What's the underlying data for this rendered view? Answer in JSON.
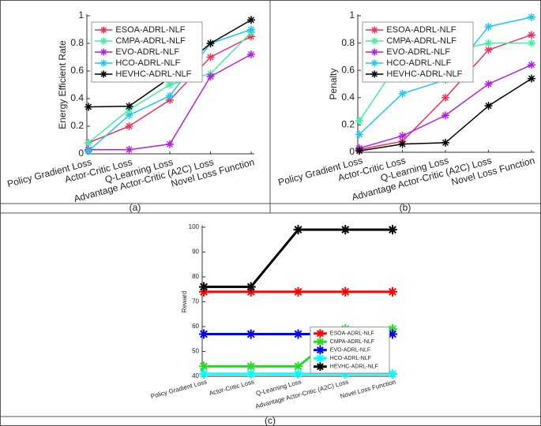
{
  "chart_data": [
    {
      "type": "line",
      "ylabel": "Energy Efficient Rate",
      "caption": "(a)",
      "categories": [
        "Policy Gradient Loss",
        "Actor-Critic Loss",
        "Q-Learning Loss",
        "Advantage Actor-Critic (A2C) Loss",
        "Novel Loss Function"
      ],
      "ylim": [
        0,
        1
      ],
      "yticks": [
        0,
        0.2,
        0.4,
        0.6,
        0.8,
        1
      ],
      "legend": "upper left",
      "series": [
        {
          "name": "ESOA-ADRL-NLF",
          "color": "#f0325a",
          "values": [
            0.08,
            0.2,
            0.39,
            0.7,
            0.85
          ]
        },
        {
          "name": "CMPA-ADRL-NLF",
          "color": "#3ff0a0",
          "values": [
            0.08,
            0.32,
            0.5,
            0.58,
            0.88
          ]
        },
        {
          "name": "EVO-ADRL-NLF",
          "color": "#b31fe6",
          "values": [
            0.03,
            0.03,
            0.07,
            0.56,
            0.72
          ]
        },
        {
          "name": "HCO-ADRL-NLF",
          "color": "#1ec8f0",
          "values": [
            0.02,
            0.28,
            0.42,
            0.8,
            0.9
          ]
        },
        {
          "name": "HEVHC-ADRL-NLF",
          "color": "#000000",
          "values": [
            0.34,
            0.345,
            0.55,
            0.8,
            0.97
          ]
        }
      ]
    },
    {
      "type": "line",
      "ylabel": "Penalty",
      "caption": "(b)",
      "categories": [
        "Policy Gradient Loss",
        "Actor-Critic Loss",
        "Q-Learning Loss",
        "Advantage Actor-Critic (A2C) Loss",
        "Novel Loss Function"
      ],
      "ylim": [
        0,
        1
      ],
      "yticks": [
        0,
        0.2,
        0.4,
        0.6,
        0.8,
        1
      ],
      "legend": "upper left",
      "series": [
        {
          "name": "ESOA-ADRL-NLF",
          "color": "#f0325a",
          "values": [
            0.02,
            0.08,
            0.4,
            0.75,
            0.86
          ]
        },
        {
          "name": "CMPA-ADRL-NLF",
          "color": "#3ff0a0",
          "values": [
            0.23,
            0.7,
            0.73,
            0.8,
            0.8
          ]
        },
        {
          "name": "EVO-ADRL-NLF",
          "color": "#b31fe6",
          "values": [
            0.03,
            0.12,
            0.27,
            0.5,
            0.64
          ]
        },
        {
          "name": "HCO-ADRL-NLF",
          "color": "#1ec8f0",
          "values": [
            0.13,
            0.43,
            0.53,
            0.92,
            0.99
          ]
        },
        {
          "name": "HEVHC-ADRL-NLF",
          "color": "#000000",
          "values": [
            0.01,
            0.06,
            0.07,
            0.34,
            0.54
          ]
        }
      ]
    },
    {
      "type": "line",
      "ylabel": "Reward",
      "caption": "(c)",
      "categories": [
        "Policy Gradient Loss",
        "Actor-Critic Loss",
        "Q-Learning Loss",
        "Advantage Actor-Critic (A2C) Loss",
        "Novel Loss Function"
      ],
      "ylim": [
        40,
        100
      ],
      "yticks": [
        40,
        50,
        60,
        70,
        80,
        90,
        100
      ],
      "legend": "lower right",
      "series": [
        {
          "name": "ESOA-ADRL-NLF",
          "color": "#ff0000",
          "values": [
            74,
            74,
            74,
            74,
            74
          ]
        },
        {
          "name": "CMPA-ADRL-NLF",
          "color": "#22dd22",
          "values": [
            44,
            44,
            44,
            59,
            59
          ]
        },
        {
          "name": "EVO-ADRL-NLF",
          "color": "#0000ff",
          "values": [
            57,
            57,
            57,
            57,
            57
          ]
        },
        {
          "name": "HCO-ADRL-NLF",
          "color": "#00ffff",
          "values": [
            41,
            41,
            41,
            41,
            41
          ]
        },
        {
          "name": "HEVHC-ADRL-NLF",
          "color": "#000000",
          "values": [
            76,
            76,
            99,
            99,
            99
          ]
        }
      ]
    }
  ]
}
